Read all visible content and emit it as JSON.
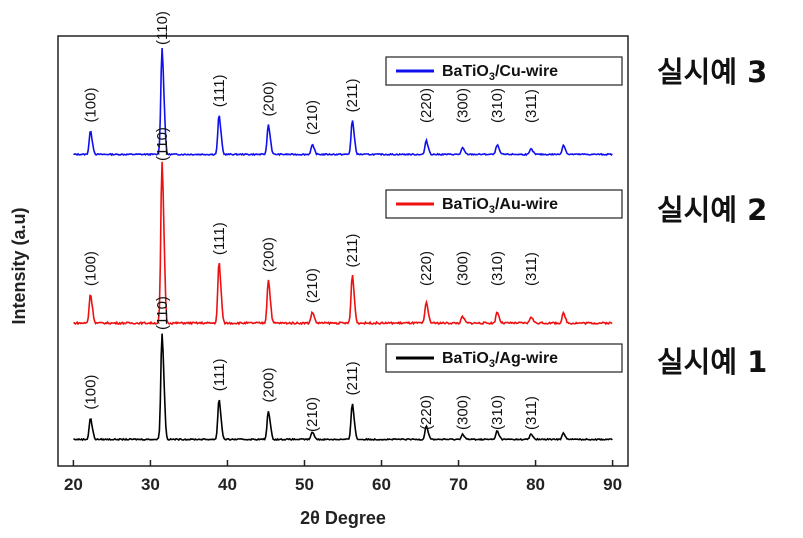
{
  "chart_data": {
    "type": "line",
    "xlabel": "2θ Degree",
    "ylabel": "Intensity (a.u)",
    "xlim": [
      18,
      92
    ],
    "xticks": [
      20,
      30,
      40,
      50,
      60,
      70,
      80,
      90
    ],
    "peaks": [
      {
        "hkl": "(100)",
        "two_theta": 22.2
      },
      {
        "hkl": "(110)",
        "two_theta": 31.5
      },
      {
        "hkl": "(111)",
        "two_theta": 38.9
      },
      {
        "hkl": "(200)",
        "two_theta": 45.3
      },
      {
        "hkl": "(210)",
        "two_theta": 51.0
      },
      {
        "hkl": "(211)",
        "two_theta": 56.2
      },
      {
        "hkl": "(220)",
        "two_theta": 65.8
      },
      {
        "hkl": "(300)",
        "two_theta": 70.5
      },
      {
        "hkl": "(310)",
        "two_theta": 75.0
      },
      {
        "hkl": "(311)",
        "two_theta": 79.4
      }
    ],
    "extra_peak": 83.6,
    "series": [
      {
        "name": "BaTiO3/Cu-wire",
        "legend_main": "BaTiO",
        "legend_sub": "3",
        "legend_tail": "/Cu-wire",
        "color": "#1010ee",
        "sample_label": "실시예 3",
        "intensities": [
          0.22,
          1.0,
          0.37,
          0.28,
          0.09,
          0.32,
          0.13,
          0.06,
          0.09,
          0.05
        ],
        "extra_intensity": 0.09
      },
      {
        "name": "BaTiO3/Au-wire",
        "legend_main": "BaTiO",
        "legend_sub": "3",
        "legend_tail": "/Au-wire",
        "color": "#ee1010",
        "sample_label": "실시예 2",
        "intensities": [
          0.18,
          1.0,
          0.38,
          0.27,
          0.07,
          0.3,
          0.13,
          0.04,
          0.07,
          0.04
        ],
        "extra_intensity": 0.06
      },
      {
        "name": "BaTiO3/Ag-wire",
        "legend_main": "BaTiO",
        "legend_sub": "3",
        "legend_tail": "/Ag-wire",
        "color": "#000000",
        "sample_label": "실시예 1",
        "intensities": [
          0.2,
          1.0,
          0.38,
          0.27,
          0.07,
          0.34,
          0.13,
          0.05,
          0.08,
          0.05
        ],
        "extra_intensity": 0.06
      }
    ]
  }
}
